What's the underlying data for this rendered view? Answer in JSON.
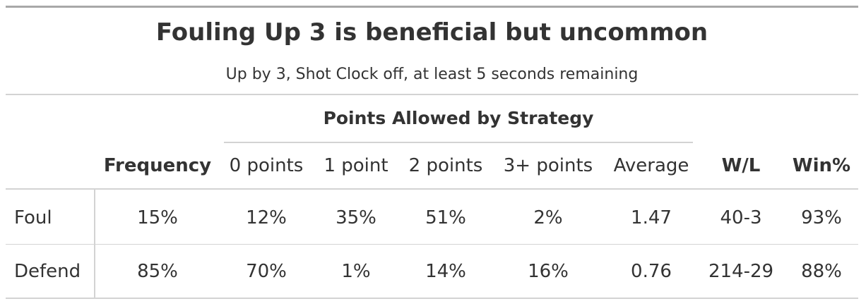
{
  "title": "Fouling Up 3 is beneficial but uncommon",
  "subtitle": "Up by 3, Shot Clock off, at least 5 seconds remaining",
  "spanner": "Points Allowed by Strategy",
  "columns": [
    "Frequency",
    "0 points",
    "1 point",
    "2 points",
    "3+ points",
    "Average",
    "W/L",
    "Win%"
  ],
  "rows": [
    {
      "label": "Foul",
      "cells": [
        "15%",
        "12%",
        "35%",
        "51%",
        "2%",
        "1.47",
        "40-3",
        "93%"
      ]
    },
    {
      "label": "Defend",
      "cells": [
        "85%",
        "70%",
        "1%",
        "14%",
        "16%",
        "0.76",
        "214-29",
        "88%"
      ]
    }
  ]
}
